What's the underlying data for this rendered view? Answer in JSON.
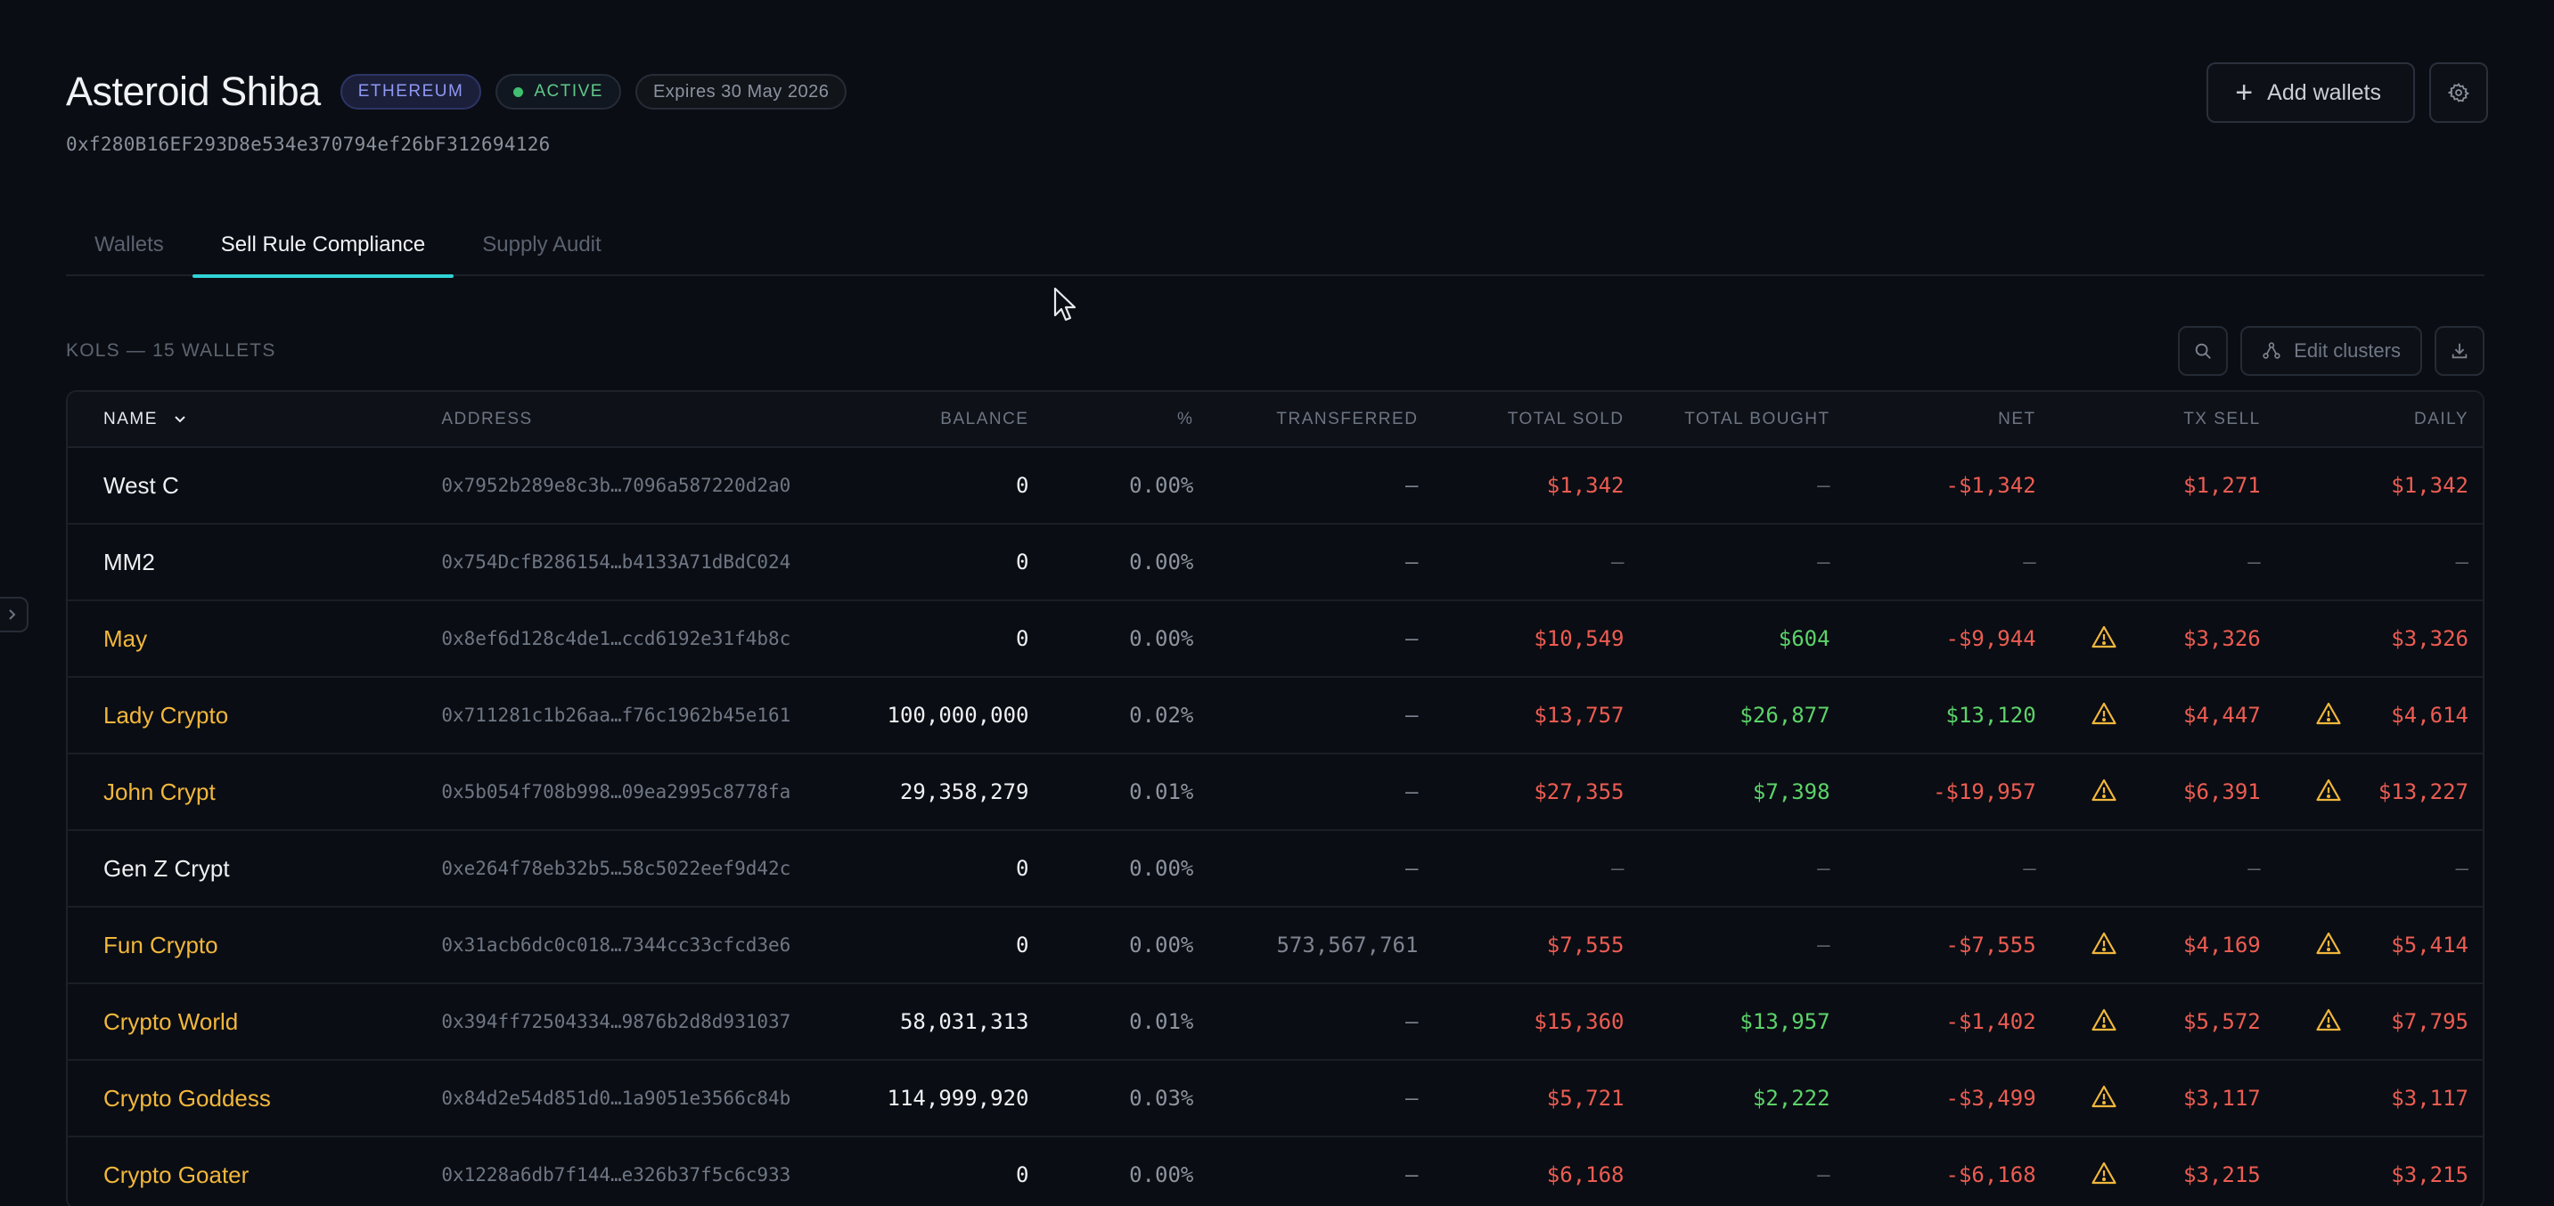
{
  "header": {
    "title": "Asteroid Shiba",
    "chain": "ETHEREUM",
    "status": "ACTIVE",
    "expiry": "Expires 30 May 2026",
    "address": "0xf280B16EF293D8e534e370794ef26bF312694126",
    "add_wallets_label": "Add wallets"
  },
  "tabs": [
    {
      "label": "Wallets",
      "active": false
    },
    {
      "label": "Sell Rule Compliance",
      "active": true
    },
    {
      "label": "Supply Audit",
      "active": false
    }
  ],
  "section": {
    "label": "KOLS — 15 WALLETS",
    "edit_clusters_label": "Edit clusters"
  },
  "table": {
    "columns": {
      "name": "NAME",
      "address": "ADDRESS",
      "balance": "BALANCE",
      "pct": "%",
      "transferred": "TRANSFERRED",
      "total_sold": "TOTAL SOLD",
      "total_bought": "TOTAL BOUGHT",
      "net": "NET",
      "tx_sell": "TX SELL",
      "daily": "DAILY"
    },
    "rows": [
      {
        "name": "West C",
        "name_color": "white",
        "address": "0x7952b289e8c3b…7096a587220d2a0",
        "balance": "0",
        "pct": "0.00%",
        "transferred": "—",
        "total_sold": "$1,342",
        "total_bought": "—",
        "net": "-$1,342",
        "net_color": "red",
        "tx_warn": false,
        "tx_sell": "$1,271",
        "daily_warn": false,
        "daily": "$1,342"
      },
      {
        "name": "MM2",
        "name_color": "white",
        "address": "0x754DcfB286154…b4133A71dBdC024",
        "balance": "0",
        "pct": "0.00%",
        "transferred": "—",
        "total_sold": "—",
        "total_bought": "—",
        "net": "—",
        "net_color": "dim",
        "tx_warn": false,
        "tx_sell": "—",
        "daily_warn": false,
        "daily": "—"
      },
      {
        "name": "May",
        "name_color": "amber",
        "address": "0x8ef6d128c4de1…ccd6192e31f4b8c",
        "balance": "0",
        "pct": "0.00%",
        "transferred": "—",
        "total_sold": "$10,549",
        "total_bought": "$604",
        "net": "-$9,944",
        "net_color": "red",
        "tx_warn": true,
        "tx_sell": "$3,326",
        "daily_warn": false,
        "daily": "$3,326"
      },
      {
        "name": "Lady Crypto",
        "name_color": "amber",
        "address": "0x711281c1b26aa…f76c1962b45e161",
        "balance": "100,000,000",
        "pct": "0.02%",
        "transferred": "—",
        "total_sold": "$13,757",
        "total_bought": "$26,877",
        "net": "$13,120",
        "net_color": "green",
        "tx_warn": true,
        "tx_sell": "$4,447",
        "daily_warn": true,
        "daily": "$4,614"
      },
      {
        "name": "John Crypt",
        "name_color": "amber",
        "address": "0x5b054f708b998…09ea2995c8778fa",
        "balance": "29,358,279",
        "pct": "0.01%",
        "transferred": "—",
        "total_sold": "$27,355",
        "total_bought": "$7,398",
        "net": "-$19,957",
        "net_color": "red",
        "tx_warn": true,
        "tx_sell": "$6,391",
        "daily_warn": true,
        "daily": "$13,227"
      },
      {
        "name": "Gen Z Crypt",
        "name_color": "white",
        "address": "0xe264f78eb32b5…58c5022eef9d42c",
        "balance": "0",
        "pct": "0.00%",
        "transferred": "—",
        "total_sold": "—",
        "total_bought": "—",
        "net": "—",
        "net_color": "dim",
        "tx_warn": false,
        "tx_sell": "—",
        "daily_warn": false,
        "daily": "—"
      },
      {
        "name": "Fun Crypto",
        "name_color": "amber",
        "address": "0x31acb6dc0c018…7344cc33cfcd3e6",
        "balance": "0",
        "pct": "0.00%",
        "transferred": "573,567,761",
        "total_sold": "$7,555",
        "total_bought": "—",
        "net": "-$7,555",
        "net_color": "red",
        "tx_warn": true,
        "tx_sell": "$4,169",
        "daily_warn": true,
        "daily": "$5,414"
      },
      {
        "name": "Crypto World",
        "name_color": "amber",
        "address": "0x394ff72504334…9876b2d8d931037",
        "balance": "58,031,313",
        "pct": "0.01%",
        "transferred": "—",
        "total_sold": "$15,360",
        "total_bought": "$13,957",
        "net": "-$1,402",
        "net_color": "red",
        "tx_warn": true,
        "tx_sell": "$5,572",
        "daily_warn": true,
        "daily": "$7,795"
      },
      {
        "name": "Crypto Goddess",
        "name_color": "amber",
        "address": "0x84d2e54d851d0…1a9051e3566c84b",
        "balance": "114,999,920",
        "pct": "0.03%",
        "transferred": "—",
        "total_sold": "$5,721",
        "total_bought": "$2,222",
        "net": "-$3,499",
        "net_color": "red",
        "tx_warn": true,
        "tx_sell": "$3,117",
        "daily_warn": false,
        "daily": "$3,117"
      },
      {
        "name": "Crypto Goater",
        "name_color": "amber",
        "address": "0x1228a6db7f144…e326b37f5c6c933",
        "balance": "0",
        "pct": "0.00%",
        "transferred": "—",
        "total_sold": "$6,168",
        "total_bought": "—",
        "net": "-$6,168",
        "net_color": "red",
        "tx_warn": true,
        "tx_sell": "$3,215",
        "daily_warn": false,
        "daily": "$3,215"
      }
    ]
  }
}
